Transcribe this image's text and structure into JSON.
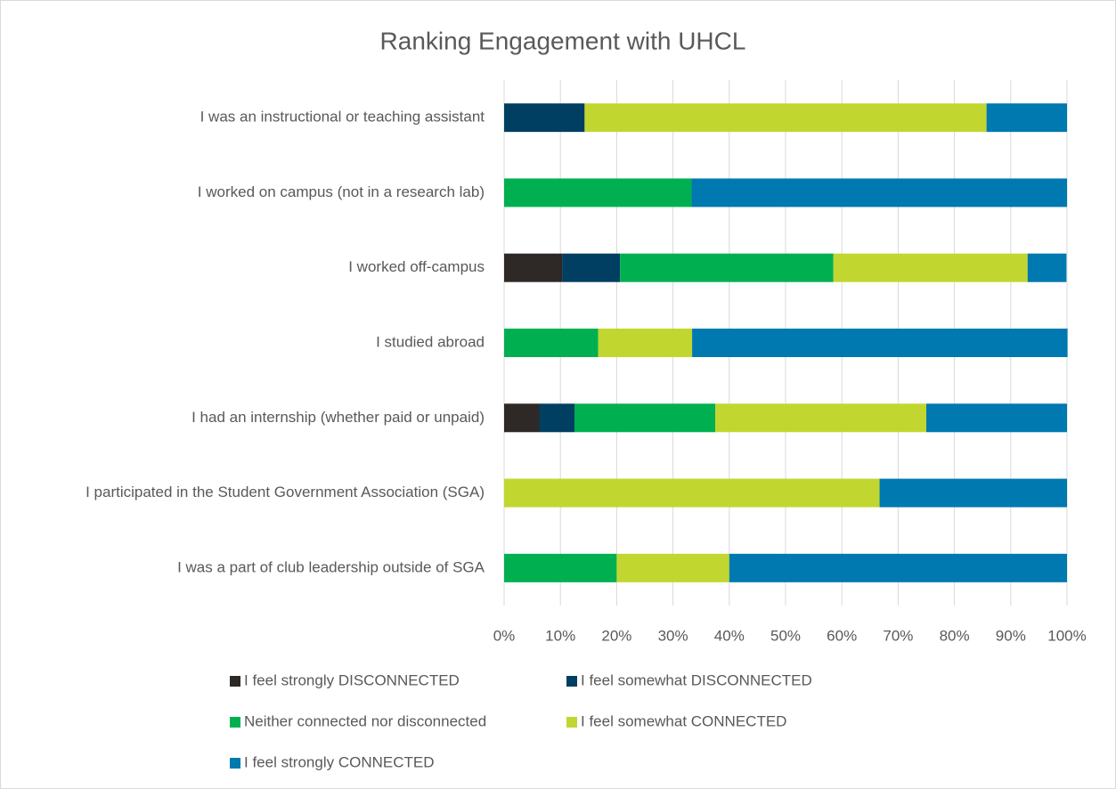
{
  "chart_data": {
    "type": "stacked_barh",
    "title": "Ranking Engagement with UHCL",
    "categories": [
      "I was an instructional or teaching assistant",
      "I worked on campus (not in a research lab)",
      "I worked off-campus",
      "I studied abroad",
      "I had an internship (whether paid or unpaid)",
      "I participated in the Student Government Association (SGA)",
      "I was a part of club leadership outside of SGA"
    ],
    "series": [
      {
        "name": "I feel strongly DISCONNECTED",
        "color": "#2e2926",
        "values": [
          0,
          0,
          10.3,
          0,
          6.25,
          0,
          0
        ]
      },
      {
        "name": "I feel somewhat DISCONNECTED",
        "color": "#003f62",
        "values": [
          14.3,
          0,
          10.3,
          0,
          6.25,
          0,
          0
        ]
      },
      {
        "name": "Neither connected nor disconnected",
        "color": "#00b050",
        "values": [
          0,
          33.3,
          37.9,
          16.7,
          25,
          0,
          20
        ]
      },
      {
        "name": "I feel somewhat CONNECTED",
        "color": "#c1d72f",
        "values": [
          71.4,
          0,
          34.5,
          16.7,
          37.5,
          66.7,
          20
        ]
      },
      {
        "name": "I feel strongly CONNECTED",
        "color": "#0078b0",
        "values": [
          14.3,
          66.7,
          6.9,
          66.7,
          25,
          33.3,
          60
        ]
      }
    ],
    "xlim": [
      0,
      100
    ],
    "xticks": [
      {
        "value": 0,
        "label": "0%"
      },
      {
        "value": 10,
        "label": "10%"
      },
      {
        "value": 20,
        "label": "20%"
      },
      {
        "value": 30,
        "label": "30%"
      },
      {
        "value": 40,
        "label": "40%"
      },
      {
        "value": 50,
        "label": "50%"
      },
      {
        "value": 60,
        "label": "60%"
      },
      {
        "value": 70,
        "label": "70%"
      },
      {
        "value": 80,
        "label": "80%"
      },
      {
        "value": 90,
        "label": "90%"
      },
      {
        "value": 100,
        "label": "100%"
      }
    ],
    "grid": true
  }
}
